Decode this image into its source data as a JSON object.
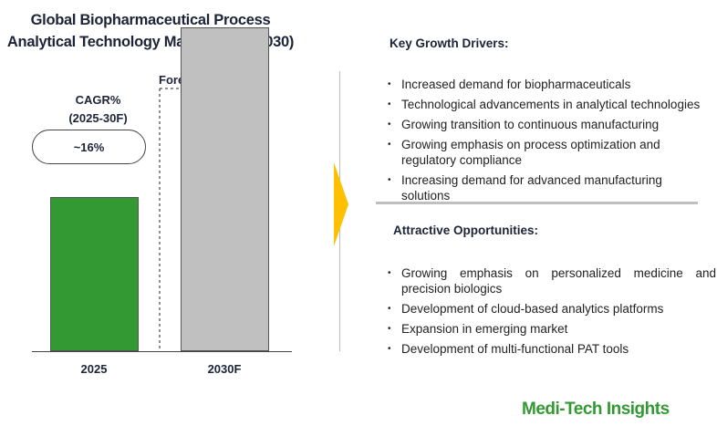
{
  "title": "Global Biopharmaceutical Process Analytical Technology Market (2025-2030)",
  "chart_data": {
    "type": "bar",
    "title": "Global Biopharmaceutical Process Analytical Technology Market (2025-2030)",
    "categories": [
      "2025",
      "2030F"
    ],
    "values": [
      1,
      2.1
    ],
    "colors": [
      "#339933",
      "#c0c0c0"
    ],
    "annotations": {
      "forecast": "Forecast",
      "cagr_label": "CAGR%",
      "cagr_period": "(2025-30F)",
      "cagr_value": "~16%"
    }
  },
  "drivers": {
    "heading": "Key Growth Drivers:",
    "items": [
      "Increased demand for biopharmaceuticals",
      "Technological advancements in analytical technologies",
      "Growing transition to continuous manufacturing",
      "Growing emphasis on process optimization and regulatory compliance",
      "Increasing demand for advanced manufacturing solutions"
    ]
  },
  "opportunities": {
    "heading": "Attractive Opportunities:",
    "items": [
      "Growing emphasis on personalized medicine and precision biologics",
      "Development of cloud-based analytics platforms",
      "Expansion in emerging market",
      "Development of multi-functional PAT tools"
    ]
  },
  "brand": "Medi-Tech Insights"
}
